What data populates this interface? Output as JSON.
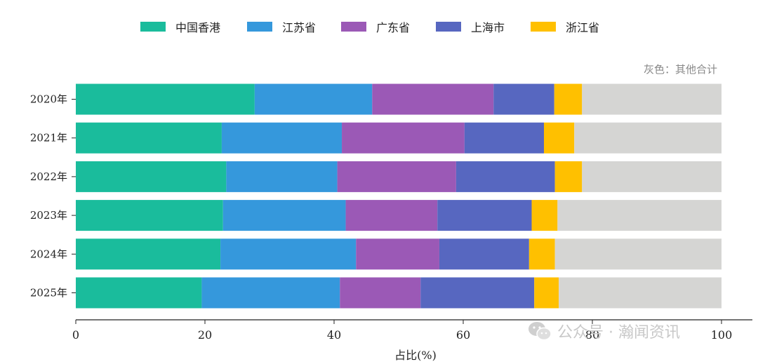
{
  "chart_data": {
    "type": "bar",
    "orientation": "horizontal",
    "stacked": true,
    "categories": [
      "2020年",
      "2021年",
      "2022年",
      "2023年",
      "2024年",
      "2025年"
    ],
    "series": [
      {
        "name": "中国香港",
        "color": "#1abc9c",
        "values": [
          27.7,
          22.6,
          23.3,
          22.8,
          22.4,
          19.5
        ]
      },
      {
        "name": "江苏省",
        "color": "#3598dc",
        "values": [
          18.2,
          18.6,
          17.2,
          19.0,
          21.0,
          21.4
        ]
      },
      {
        "name": "广东省",
        "color": "#9b59b6",
        "values": [
          18.8,
          19.0,
          18.4,
          14.2,
          12.9,
          12.5
        ]
      },
      {
        "name": "上海市",
        "color": "#5767c0",
        "values": [
          9.4,
          12.3,
          15.3,
          14.6,
          13.9,
          17.6
        ]
      },
      {
        "name": "浙江省",
        "color": "#ffc000",
        "values": [
          4.3,
          4.7,
          4.2,
          4.0,
          4.0,
          3.8
        ]
      },
      {
        "name": "其他合计",
        "color": "#d5d5d3",
        "values": [
          21.6,
          22.8,
          21.6,
          25.4,
          25.8,
          25.2
        ]
      }
    ],
    "legend_series_count": 5,
    "legend_position": "top-center",
    "xlabel": "占比(%)",
    "xlim": [
      0,
      100
    ],
    "xticks": [
      0,
      20,
      40,
      60,
      80,
      100
    ],
    "grid": false
  },
  "note": "灰色：其他合计",
  "watermark": {
    "icon": "wechat-icon",
    "text": "公众号 · 瀚闻资讯"
  }
}
